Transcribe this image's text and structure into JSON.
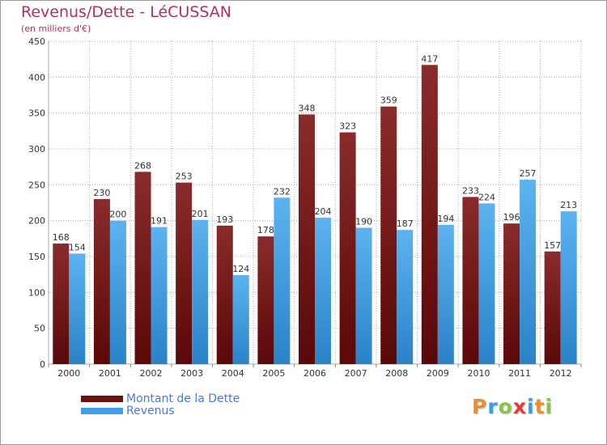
{
  "header": {
    "title": "Revenus/Dette - LéCUSSAN",
    "subtitle": "(en milliers d'€)"
  },
  "legend": {
    "items": [
      {
        "label": "Montant de la Dette",
        "color": "#6e1010"
      },
      {
        "label": "Revenus",
        "color": "#3f9fe6"
      }
    ]
  },
  "logo": {
    "letters": [
      "P",
      "r",
      "o",
      "x",
      "i",
      "t",
      "i"
    ],
    "colors": [
      "#f28c28",
      "#39a0e0",
      "#8bc34a",
      "#e53935",
      "#39a0e0",
      "#f28c28",
      "#8bc34a"
    ]
  },
  "chart_data": {
    "type": "bar",
    "categories": [
      "2000",
      "2001",
      "2002",
      "2003",
      "2004",
      "2005",
      "2006",
      "2007",
      "2008",
      "2009",
      "2010",
      "2011",
      "2012"
    ],
    "series": [
      {
        "name": "Montant de la Dette",
        "color": "#7a1a1a",
        "values": [
          168,
          230,
          268,
          253,
          193,
          178,
          348,
          323,
          359,
          417,
          233,
          196,
          157
        ]
      },
      {
        "name": "Revenus",
        "color": "#3f9fe6",
        "values": [
          154,
          200,
          191,
          201,
          124,
          232,
          204,
          190,
          187,
          194,
          224,
          257,
          213
        ]
      }
    ],
    "ylim": [
      0,
      450
    ],
    "yticks": [
      0,
      50,
      100,
      150,
      200,
      250,
      300,
      350,
      400,
      450
    ],
    "grid": true,
    "legend_position": "bottom-left"
  }
}
